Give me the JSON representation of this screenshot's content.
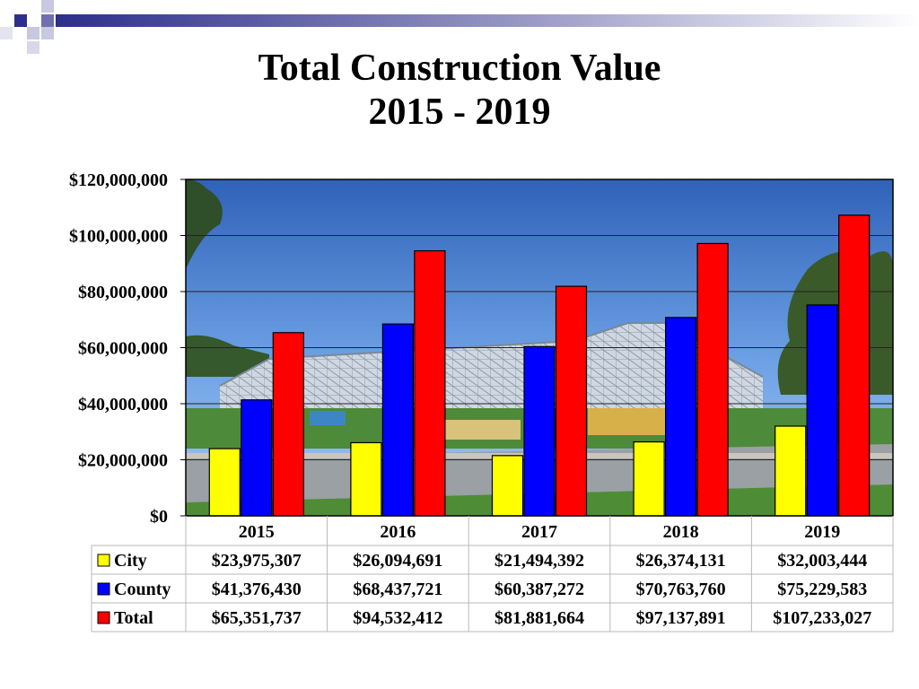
{
  "slide": {
    "title_line1": "Total Construction Value",
    "title_line2": "2015 - 2019"
  },
  "colors": {
    "city": "#ffff00",
    "county": "#0000ff",
    "total": "#ff0000",
    "accent": "#2e2e8c"
  },
  "chart_data": {
    "type": "bar",
    "title": "Total Construction Value 2015 - 2019",
    "categories": [
      "2015",
      "2016",
      "2017",
      "2018",
      "2019"
    ],
    "ylim": [
      0,
      120000000
    ],
    "yticks": [
      0,
      20000000,
      40000000,
      60000000,
      80000000,
      100000000,
      120000000
    ],
    "ytick_labels": [
      "$0",
      "$20,000,000",
      "$40,000,000",
      "$60,000,000",
      "$80,000,000",
      "$100,000,000",
      "$120,000,000"
    ],
    "grid": true,
    "legend": "data-table-left",
    "background": "photo of steel-frame building under construction",
    "series": [
      {
        "name": "City",
        "color": "#ffff00",
        "values": [
          23975307,
          26094691,
          21494392,
          26374131,
          32003444
        ],
        "labels": [
          "$23,975,307",
          "$26,094,691",
          "$21,494,392",
          "$26,374,131",
          "$32,003,444"
        ]
      },
      {
        "name": "County",
        "color": "#0000ff",
        "values": [
          41376430,
          68437721,
          60387272,
          70763760,
          75229583
        ],
        "labels": [
          "$41,376,430",
          "$68,437,721",
          "$60,387,272",
          "$70,763,760",
          "$75,229,583"
        ]
      },
      {
        "name": "Total",
        "color": "#ff0000",
        "values": [
          65351737,
          94532412,
          81881664,
          97137891,
          107233027
        ],
        "labels": [
          "$65,351,737",
          "$94,532,412",
          "$81,881,664",
          "$97,137,891",
          "$107,233,027"
        ]
      }
    ]
  }
}
